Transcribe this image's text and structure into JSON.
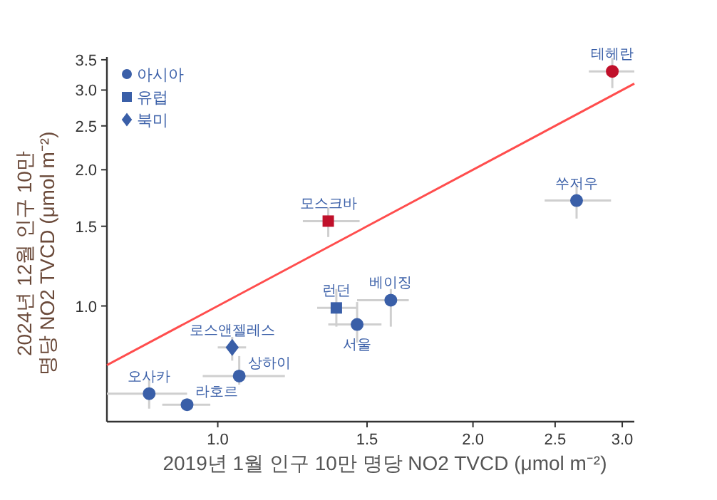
{
  "chart_data": {
    "type": "scatter",
    "xlabel": "2019년 1월 인구 10만 명당 NO2 TVCD (μmol m⁻²)",
    "ylabel": "2024년 12월 인구 10만\n명당 NO2 TVCD (μmol m⁻²)",
    "log": "xy",
    "xlim": [
      0.74,
      3.1
    ],
    "ylim": [
      0.555,
      3.55
    ],
    "xticks": [
      {
        "value": 1,
        "label": "1.0"
      },
      {
        "value": 1.5,
        "label": "1.5"
      },
      {
        "value": 2,
        "label": "2.0"
      },
      {
        "value": 2.5,
        "label": "2.5"
      },
      {
        "value": 3,
        "label": "3.0"
      }
    ],
    "yticks": [
      {
        "value": 1,
        "label": "1.0"
      },
      {
        "value": 1.5,
        "label": "1.5"
      },
      {
        "value": 2,
        "label": "2.0"
      },
      {
        "value": 2.5,
        "label": "2.5"
      },
      {
        "value": 3,
        "label": "3.0"
      },
      {
        "value": 3.5,
        "label": "3.5"
      }
    ],
    "grid": false,
    "legend": "top left",
    "series": [
      {
        "name": "아시아",
        "marker": "circle",
        "color": "#3a5fa8",
        "x": [
          0.83,
          0.92,
          1.06,
          1.46,
          1.6,
          2.65,
          2.92
        ],
        "values": [
          0.64,
          0.605,
          0.7,
          0.91,
          1.03,
          1.71,
          3.3
        ],
        "colors": [
          "#3a5fa8",
          "#3a5fa8",
          "#3a5fa8",
          "#3a5fa8",
          "#3a5fa8",
          "#3a5fa8",
          "#c0102a"
        ],
        "xerrors": [
          [
            0.74,
            0.92
          ],
          [
            0.86,
            0.98
          ],
          [
            0.96,
            1.2
          ],
          [
            1.35,
            1.56
          ],
          [
            1.46,
            1.68
          ],
          [
            2.43,
            2.91
          ],
          [
            2.74,
            3.1
          ]
        ],
        "errors": [
          [
            0.593,
            0.687
          ],
          null,
          [
            0.67,
            0.775
          ],
          [
            0.83,
            1.02
          ],
          [
            0.9,
            1.09
          ],
          [
            1.56,
            1.86
          ],
          [
            3.03,
            3.53
          ]
        ]
      },
      {
        "name": "유럽",
        "marker": "square",
        "color": "#3a5fa8",
        "x": [
          1.35,
          1.38
        ],
        "values": [
          1.54,
          0.99
        ],
        "colors": [
          "#c0102a",
          "#3a5fa8"
        ],
        "xerrors": [
          [
            1.26,
            1.47
          ],
          [
            1.31,
            1.46
          ]
        ],
        "errors": [
          [
            1.42,
            1.65
          ],
          [
            0.9,
            1.09
          ]
        ]
      },
      {
        "name": "북미",
        "marker": "diamond",
        "color": "#3a5fa8",
        "x": [
          1.04
        ],
        "values": [
          0.81
        ],
        "colors": [
          "#3a5fa8"
        ],
        "xerrors": [
          [
            1.0,
            1.08
          ]
        ],
        "errors": [
          [
            0.757,
            0.854
          ]
        ]
      },
      {
        "type": "line",
        "x": [
          0.74,
          3.1
        ],
        "values": [
          0.74,
          3.1
        ],
        "color": "#ff4d4d"
      }
    ],
    "annotations": [
      {
        "text": "오사카",
        "x": 0.83,
        "y": 0.64
      },
      {
        "text": "라호르",
        "x": 0.92,
        "y": 0.605
      },
      {
        "text": "상하이",
        "x": 1.06,
        "y": 0.7
      },
      {
        "text": "서울",
        "x": 1.46,
        "y": 0.91
      },
      {
        "text": "베이징",
        "x": 1.6,
        "y": 1.03
      },
      {
        "text": "쑤저우",
        "x": 2.65,
        "y": 1.71
      },
      {
        "text": "테헤란",
        "x": 2.92,
        "y": 3.3
      },
      {
        "text": "모스크바",
        "x": 1.35,
        "y": 1.54
      },
      {
        "text": "런던",
        "x": 1.38,
        "y": 0.99
      },
      {
        "text": "로스앤젤레스",
        "x": 1.04,
        "y": 0.81
      }
    ]
  }
}
